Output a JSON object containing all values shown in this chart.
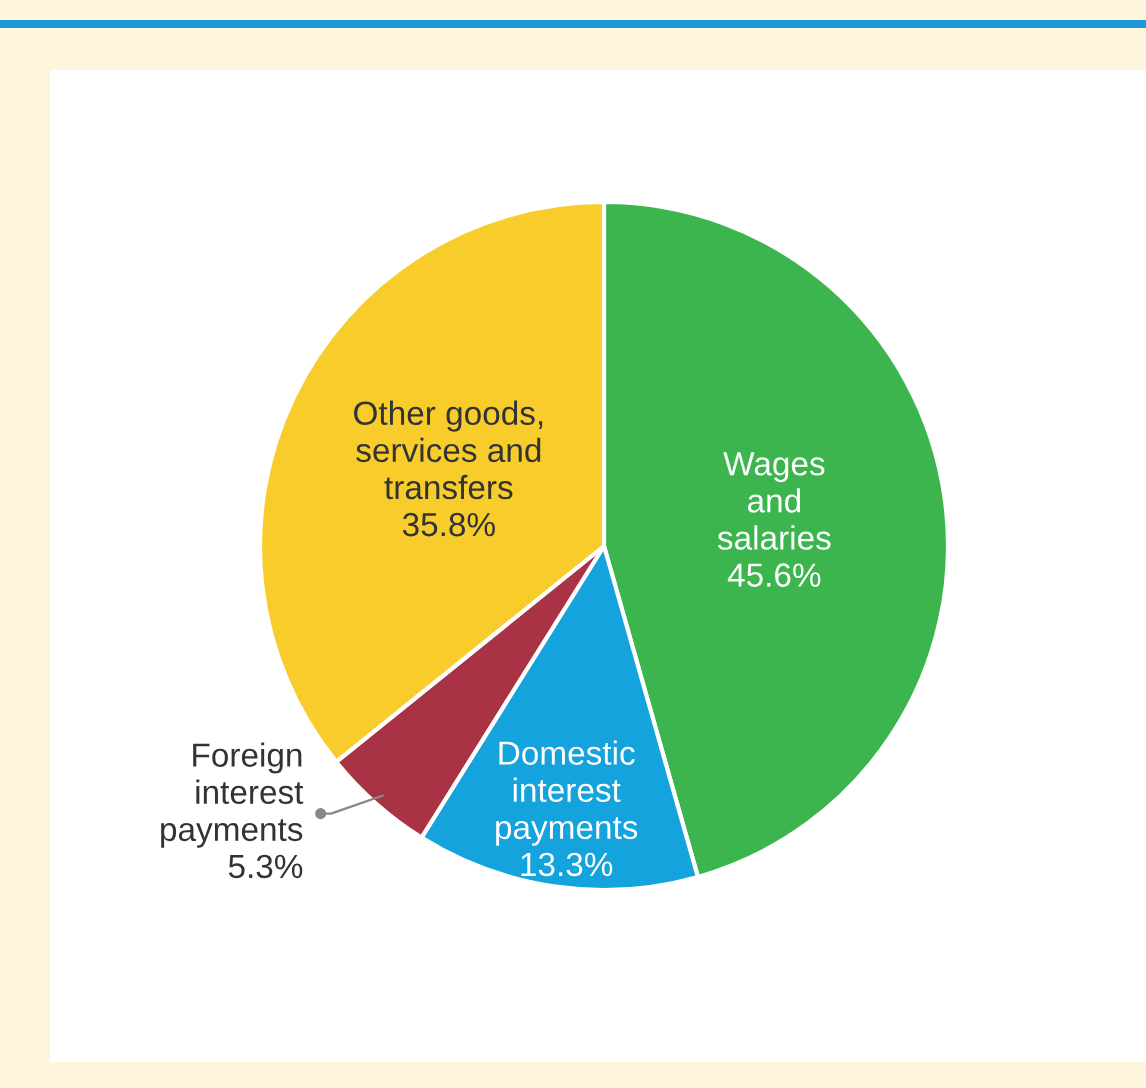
{
  "chart_data": {
    "type": "pie",
    "categories": [
      "Wages\nand\nsalaries",
      "Domestic\ninterest\npayments",
      "Foreign\ninterest\npayments",
      "Other goods,\nservices and\ntransfers"
    ],
    "values": [
      45.6,
      13.3,
      5.3,
      35.8
    ],
    "value_labels": [
      "45.6%",
      "13.3%",
      "5.3%",
      "35.8%"
    ],
    "colors": [
      "#3cb54f",
      "#14a3dc",
      "#a93345",
      "#f8cd2b"
    ]
  }
}
